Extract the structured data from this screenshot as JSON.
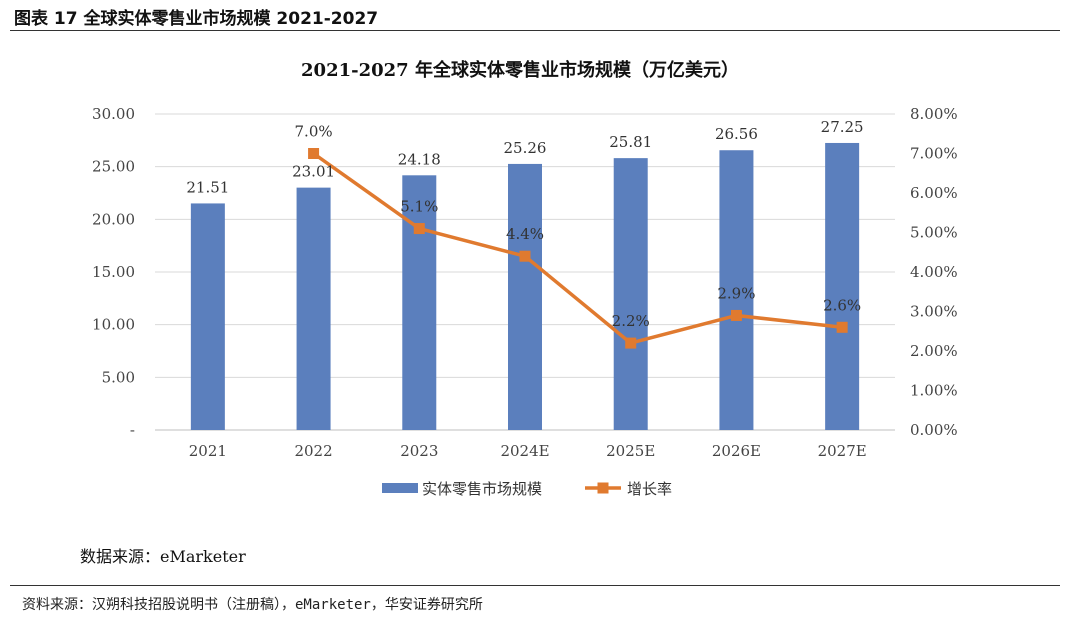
{
  "figure_title": "图表 17 全球实体零售业市场规模 2021-2027",
  "data_source_note": "数据来源：eMarketer",
  "footer_source": "资料来源：汉朔科技招股说明书（注册稿），eMarketer，华安证券研究所",
  "colors": {
    "bar": "#5b7fbd",
    "line": "#e07a2f",
    "grid": "#d9d9d9"
  },
  "chart_data": {
    "type": "bar+line",
    "title": "2021-2027 年全球实体零售业市场规模（万亿美元）",
    "categories": [
      "2021",
      "2022",
      "2023",
      "2024E",
      "2025E",
      "2026E",
      "2027E"
    ],
    "series": [
      {
        "name": "实体零售市场规模",
        "type": "bar",
        "axis": "left",
        "values": [
          21.51,
          23.01,
          24.18,
          25.26,
          25.81,
          26.56,
          27.25
        ],
        "labels": [
          "21.51",
          "23.01",
          "24.18",
          "25.26",
          "25.81",
          "26.56",
          "27.25"
        ]
      },
      {
        "name": "增长率",
        "type": "line",
        "axis": "right",
        "values": [
          null,
          7.0,
          5.1,
          4.4,
          2.2,
          2.9,
          2.6
        ],
        "labels": [
          "",
          "7.0%",
          "5.1%",
          "4.4%",
          "2.2%",
          "2.9%",
          "2.6%"
        ]
      }
    ],
    "y_left": {
      "min": 0,
      "max": 30,
      "ticks": [
        0,
        5,
        10,
        15,
        20,
        25,
        30
      ],
      "tick_labels": [
        "-",
        "5.00",
        "10.00",
        "15.00",
        "20.00",
        "25.00",
        "30.00"
      ]
    },
    "y_right": {
      "min": 0,
      "max": 8,
      "ticks": [
        0,
        1,
        2,
        3,
        4,
        5,
        6,
        7,
        8
      ],
      "tick_labels": [
        "0.00%",
        "1.00%",
        "2.00%",
        "3.00%",
        "4.00%",
        "5.00%",
        "6.00%",
        "7.00%",
        "8.00%"
      ]
    },
    "legend": {
      "position": "bottom",
      "items": [
        "实体零售市场规模",
        "增长率"
      ]
    }
  }
}
